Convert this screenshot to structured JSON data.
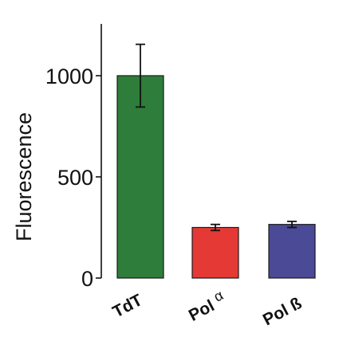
{
  "chart_data": {
    "type": "bar",
    "title": "",
    "xlabel": "",
    "ylabel": "Fluorescence",
    "ylim": [
      0,
      1250
    ],
    "yticks": [
      0,
      500,
      1000
    ],
    "ytick_labels": [
      "0",
      "500",
      "1000"
    ],
    "grid": false,
    "legend": "none",
    "categories": [
      {
        "name": "TdT",
        "main": "TdT",
        "greek": ""
      },
      {
        "name": "Pol α",
        "main": "Pol ",
        "greek": "α"
      },
      {
        "name": "Pol ß",
        "main": "Pol ß",
        "greek": ""
      }
    ],
    "values": [
      1000,
      250,
      265
    ],
    "error": [
      155,
      15,
      15
    ],
    "colors": [
      "#2e7d3a",
      "#e53935",
      "#4a4a96"
    ]
  }
}
